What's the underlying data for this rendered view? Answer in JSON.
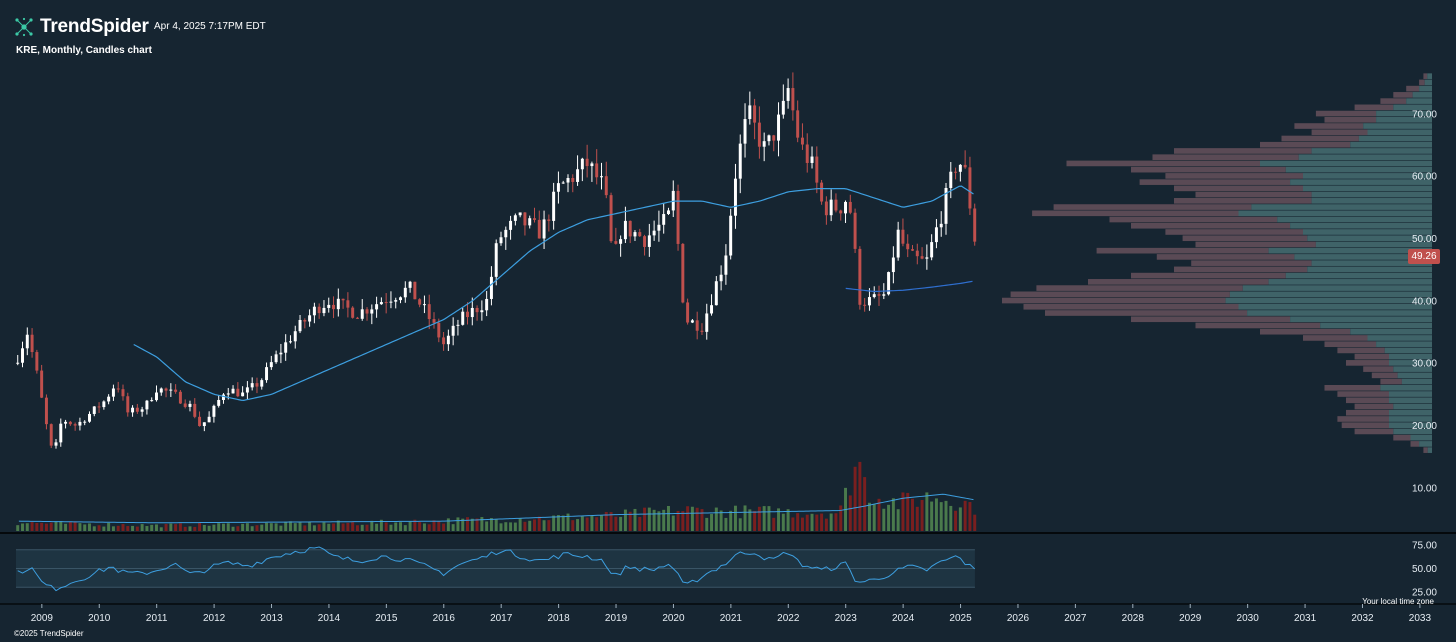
{
  "header": {
    "brand": "TrendSpider",
    "timestamp": "Apr 4, 2025 7:17PM EDT",
    "chart_title": "KRE, Monthly, Candles chart",
    "copyright": "©2025 TrendSpider",
    "timezone_label": "Your local time zone"
  },
  "colors": {
    "background": "#162531",
    "up_candle": "#ffffff",
    "down_candle": "#c0504d",
    "moving_average": "#3d9fe0",
    "volume_up": "#4a7a4c",
    "volume_down": "#7a1f1f",
    "profile_buy": "#3f6368",
    "profile_sell": "#5a4a55",
    "rsi_band": "#1e3442",
    "price_badge": "#c0504d"
  },
  "icons": {
    "logo": "trendspider-logo-icon"
  },
  "chart_data": {
    "type": "candlestick",
    "title": "KRE, Monthly, Candles chart",
    "symbol": "KRE",
    "interval": "Monthly",
    "last_price_label": "49.26",
    "ylim": [
      5,
      78
    ],
    "y_ticks": [
      "70.00",
      "60.00",
      "50.00",
      "40.00",
      "30.00",
      "20.00",
      "10.00"
    ],
    "y_tick_values": [
      70,
      60,
      50,
      40,
      30,
      20,
      10
    ],
    "x_ticks": [
      "2009",
      "2010",
      "2011",
      "2012",
      "2013",
      "2014",
      "2015",
      "2016",
      "2017",
      "2018",
      "2019",
      "2020",
      "2021",
      "2022",
      "2023",
      "2024",
      "2025",
      "2026",
      "2027",
      "2028",
      "2029",
      "2030",
      "2031",
      "2032",
      "2033"
    ],
    "x_range": [
      2008.55,
      2033.35
    ],
    "price_anchors": [
      [
        2008.58,
        31
      ],
      [
        2008.75,
        35
      ],
      [
        2008.92,
        28
      ],
      [
        2009.1,
        19
      ],
      [
        2009.2,
        15
      ],
      [
        2009.35,
        21
      ],
      [
        2009.6,
        20
      ],
      [
        2009.85,
        22
      ],
      [
        2010.1,
        24
      ],
      [
        2010.3,
        27
      ],
      [
        2010.5,
        22
      ],
      [
        2010.8,
        23
      ],
      [
        2011.0,
        26
      ],
      [
        2011.3,
        25
      ],
      [
        2011.6,
        23
      ],
      [
        2011.75,
        20
      ],
      [
        2011.9,
        21
      ],
      [
        2012.2,
        26
      ],
      [
        2012.5,
        25
      ],
      [
        2012.8,
        27
      ],
      [
        2013.0,
        30
      ],
      [
        2013.4,
        35
      ],
      [
        2013.8,
        39
      ],
      [
        2014.0,
        40
      ],
      [
        2014.5,
        38
      ],
      [
        2014.9,
        40
      ],
      [
        2015.4,
        42
      ],
      [
        2015.7,
        38
      ],
      [
        2016.0,
        33
      ],
      [
        2016.3,
        37
      ],
      [
        2016.75,
        40
      ],
      [
        2016.95,
        50
      ],
      [
        2017.3,
        53
      ],
      [
        2017.7,
        51
      ],
      [
        2018.0,
        58
      ],
      [
        2018.5,
        62
      ],
      [
        2018.8,
        58
      ],
      [
        2018.95,
        46
      ],
      [
        2019.1,
        52
      ],
      [
        2019.5,
        50
      ],
      [
        2019.9,
        53
      ],
      [
        2020.0,
        57
      ],
      [
        2020.2,
        37
      ],
      [
        2020.5,
        36
      ],
      [
        2020.9,
        47
      ],
      [
        2021.1,
        62
      ],
      [
        2021.3,
        70
      ],
      [
        2021.6,
        64
      ],
      [
        2021.9,
        70
      ],
      [
        2022.0,
        74
      ],
      [
        2022.2,
        65
      ],
      [
        2022.4,
        62
      ],
      [
        2022.6,
        55
      ],
      [
        2022.9,
        55
      ],
      [
        2023.05,
        57
      ],
      [
        2023.25,
        40
      ],
      [
        2023.45,
        40
      ],
      [
        2023.7,
        41
      ],
      [
        2023.9,
        51
      ],
      [
        2024.1,
        47
      ],
      [
        2024.4,
        46
      ],
      [
        2024.7,
        55
      ],
      [
        2024.95,
        63
      ],
      [
        2025.1,
        60
      ],
      [
        2025.25,
        49.26
      ]
    ],
    "moving_average_anchors": [
      [
        2010.6,
        33
      ],
      [
        2011.0,
        31
      ],
      [
        2011.5,
        27
      ],
      [
        2012.0,
        25
      ],
      [
        2012.5,
        24
      ],
      [
        2013.0,
        25
      ],
      [
        2013.5,
        27
      ],
      [
        2014.0,
        29
      ],
      [
        2014.5,
        31
      ],
      [
        2015.0,
        33
      ],
      [
        2015.5,
        35
      ],
      [
        2016.0,
        37
      ],
      [
        2016.5,
        40
      ],
      [
        2017.0,
        44
      ],
      [
        2017.5,
        48
      ],
      [
        2018.0,
        51
      ],
      [
        2018.5,
        53
      ],
      [
        2019.0,
        54
      ],
      [
        2019.5,
        55
      ],
      [
        2020.0,
        56
      ],
      [
        2020.5,
        56
      ],
      [
        2021.0,
        55
      ],
      [
        2021.5,
        56
      ],
      [
        2022.0,
        57.5
      ],
      [
        2022.5,
        58
      ],
      [
        2023.0,
        58
      ],
      [
        2023.5,
        56.5
      ],
      [
        2024.0,
        55
      ],
      [
        2024.5,
        56
      ],
      [
        2025.0,
        58.5
      ],
      [
        2025.25,
        57
      ]
    ],
    "long_ma_anchors": [
      [
        2023.0,
        42
      ],
      [
        2023.5,
        41.5
      ],
      [
        2024.0,
        41.7
      ],
      [
        2024.5,
        42.2
      ],
      [
        2025.0,
        42.8
      ],
      [
        2025.25,
        43.2
      ]
    ],
    "volume_anchors": [
      [
        2008.6,
        0.12
      ],
      [
        2011.0,
        0.08
      ],
      [
        2015.0,
        0.12
      ],
      [
        2019.0,
        0.22
      ],
      [
        2020.2,
        0.3
      ],
      [
        2020.9,
        0.28
      ],
      [
        2022.9,
        0.27
      ],
      [
        2023.2,
        1.0
      ],
      [
        2023.4,
        0.55
      ],
      [
        2023.9,
        0.4
      ],
      [
        2024.5,
        0.5
      ],
      [
        2024.9,
        0.45
      ],
      [
        2025.25,
        0.35
      ]
    ],
    "volume_ma_anchors": [
      [
        2008.6,
        0.12
      ],
      [
        2011.0,
        0.1
      ],
      [
        2016.0,
        0.12
      ],
      [
        2019.0,
        0.2
      ],
      [
        2022.9,
        0.25
      ],
      [
        2023.3,
        0.3
      ],
      [
        2024.0,
        0.4
      ],
      [
        2024.7,
        0.45
      ],
      [
        2025.25,
        0.38
      ]
    ],
    "volume_profile": [
      {
        "p": 76,
        "total": 0.02,
        "buy": 0.011
      },
      {
        "p": 75,
        "total": 0.03,
        "buy": 0.017
      },
      {
        "p": 74,
        "total": 0.06,
        "buy": 0.03
      },
      {
        "p": 73,
        "total": 0.09,
        "buy": 0.045
      },
      {
        "p": 72,
        "total": 0.12,
        "buy": 0.06
      },
      {
        "p": 71,
        "total": 0.18,
        "buy": 0.09
      },
      {
        "p": 70,
        "total": 0.27,
        "buy": 0.13
      },
      {
        "p": 69,
        "total": 0.25,
        "buy": 0.13
      },
      {
        "p": 68,
        "total": 0.32,
        "buy": 0.16
      },
      {
        "p": 67,
        "total": 0.28,
        "buy": 0.15
      },
      {
        "p": 66,
        "total": 0.35,
        "buy": 0.17
      },
      {
        "p": 65,
        "total": 0.4,
        "buy": 0.19
      },
      {
        "p": 64,
        "total": 0.6,
        "buy": 0.28
      },
      {
        "p": 63,
        "total": 0.65,
        "buy": 0.31
      },
      {
        "p": 62,
        "total": 0.85,
        "buy": 0.4
      },
      {
        "p": 61,
        "total": 0.7,
        "buy": 0.34
      },
      {
        "p": 60,
        "total": 0.62,
        "buy": 0.3
      },
      {
        "p": 59,
        "total": 0.68,
        "buy": 0.33
      },
      {
        "p": 58,
        "total": 0.6,
        "buy": 0.3
      },
      {
        "p": 57,
        "total": 0.55,
        "buy": 0.28
      },
      {
        "p": 56,
        "total": 0.6,
        "buy": 0.28
      },
      {
        "p": 55,
        "total": 0.88,
        "buy": 0.42
      },
      {
        "p": 54,
        "total": 0.93,
        "buy": 0.45
      },
      {
        "p": 53,
        "total": 0.75,
        "buy": 0.36
      },
      {
        "p": 52,
        "total": 0.7,
        "buy": 0.33
      },
      {
        "p": 51,
        "total": 0.62,
        "buy": 0.3
      },
      {
        "p": 50,
        "total": 0.58,
        "buy": 0.29
      },
      {
        "p": 49,
        "total": 0.55,
        "buy": 0.27
      },
      {
        "p": 48,
        "total": 0.78,
        "buy": 0.38
      },
      {
        "p": 47,
        "total": 0.64,
        "buy": 0.32
      },
      {
        "p": 46,
        "total": 0.56,
        "buy": 0.28
      },
      {
        "p": 45,
        "total": 0.6,
        "buy": 0.29
      },
      {
        "p": 44,
        "total": 0.7,
        "buy": 0.34
      },
      {
        "p": 43,
        "total": 0.8,
        "buy": 0.38
      },
      {
        "p": 42,
        "total": 0.92,
        "buy": 0.44
      },
      {
        "p": 41,
        "total": 0.98,
        "buy": 0.47
      },
      {
        "p": 40,
        "total": 1.0,
        "buy": 0.48
      },
      {
        "p": 39,
        "total": 0.95,
        "buy": 0.45
      },
      {
        "p": 38,
        "total": 0.9,
        "buy": 0.43
      },
      {
        "p": 37,
        "total": 0.7,
        "buy": 0.33
      },
      {
        "p": 36,
        "total": 0.55,
        "buy": 0.26
      },
      {
        "p": 35,
        "total": 0.4,
        "buy": 0.19
      },
      {
        "p": 34,
        "total": 0.3,
        "buy": 0.15
      },
      {
        "p": 33,
        "total": 0.25,
        "buy": 0.13
      },
      {
        "p": 32,
        "total": 0.22,
        "buy": 0.11
      },
      {
        "p": 31,
        "total": 0.18,
        "buy": 0.1
      },
      {
        "p": 30,
        "total": 0.2,
        "buy": 0.1
      },
      {
        "p": 29,
        "total": 0.16,
        "buy": 0.09
      },
      {
        "p": 28,
        "total": 0.14,
        "buy": 0.08
      },
      {
        "p": 27,
        "total": 0.12,
        "buy": 0.07
      },
      {
        "p": 26,
        "total": 0.25,
        "buy": 0.12
      },
      {
        "p": 25,
        "total": 0.22,
        "buy": 0.1
      },
      {
        "p": 24,
        "total": 0.2,
        "buy": 0.1
      },
      {
        "p": 23,
        "total": 0.18,
        "buy": 0.09
      },
      {
        "p": 22,
        "total": 0.2,
        "buy": 0.1
      },
      {
        "p": 21,
        "total": 0.22,
        "buy": 0.1
      },
      {
        "p": 20,
        "total": 0.21,
        "buy": 0.1
      },
      {
        "p": 19,
        "total": 0.18,
        "buy": 0.09
      },
      {
        "p": 18,
        "total": 0.09,
        "buy": 0.05
      },
      {
        "p": 17,
        "total": 0.05,
        "buy": 0.03
      },
      {
        "p": 16,
        "total": 0.02,
        "buy": 0.01
      }
    ],
    "rsi": {
      "ylim": [
        25,
        75
      ],
      "y_ticks": [
        "75.00",
        "50.00",
        "25.00"
      ],
      "y_tick_values": [
        75,
        50,
        25
      ],
      "band": [
        30,
        70
      ],
      "anchors": [
        [
          2008.58,
          45
        ],
        [
          2008.8,
          52
        ],
        [
          2009.0,
          35
        ],
        [
          2009.2,
          28
        ],
        [
          2009.5,
          35
        ],
        [
          2009.8,
          42
        ],
        [
          2010.2,
          52
        ],
        [
          2010.4,
          46
        ],
        [
          2010.7,
          44
        ],
        [
          2011.0,
          48
        ],
        [
          2011.3,
          55
        ],
        [
          2011.6,
          43
        ],
        [
          2011.9,
          50
        ],
        [
          2012.2,
          56
        ],
        [
          2012.6,
          53
        ],
        [
          2013.0,
          62
        ],
        [
          2013.4,
          68
        ],
        [
          2013.8,
          72
        ],
        [
          2014.1,
          62
        ],
        [
          2014.5,
          58
        ],
        [
          2014.9,
          63
        ],
        [
          2015.3,
          60
        ],
        [
          2015.7,
          52
        ],
        [
          2016.0,
          45
        ],
        [
          2016.3,
          55
        ],
        [
          2016.7,
          62
        ],
        [
          2017.0,
          70
        ],
        [
          2017.4,
          62
        ],
        [
          2017.7,
          58
        ],
        [
          2018.1,
          65
        ],
        [
          2018.5,
          63
        ],
        [
          2018.8,
          58
        ],
        [
          2018.95,
          40
        ],
        [
          2019.2,
          52
        ],
        [
          2019.6,
          48
        ],
        [
          2019.95,
          55
        ],
        [
          2020.2,
          30
        ],
        [
          2020.5,
          42
        ],
        [
          2020.9,
          55
        ],
        [
          2021.1,
          65
        ],
        [
          2021.4,
          68
        ],
        [
          2021.7,
          58
        ],
        [
          2022.0,
          68
        ],
        [
          2022.2,
          55
        ],
        [
          2022.6,
          48
        ],
        [
          2023.0,
          55
        ],
        [
          2023.2,
          35
        ],
        [
          2023.5,
          38
        ],
        [
          2023.8,
          45
        ],
        [
          2024.1,
          52
        ],
        [
          2024.4,
          48
        ],
        [
          2024.7,
          58
        ],
        [
          2024.95,
          63
        ],
        [
          2025.1,
          55
        ],
        [
          2025.25,
          48
        ]
      ]
    }
  }
}
